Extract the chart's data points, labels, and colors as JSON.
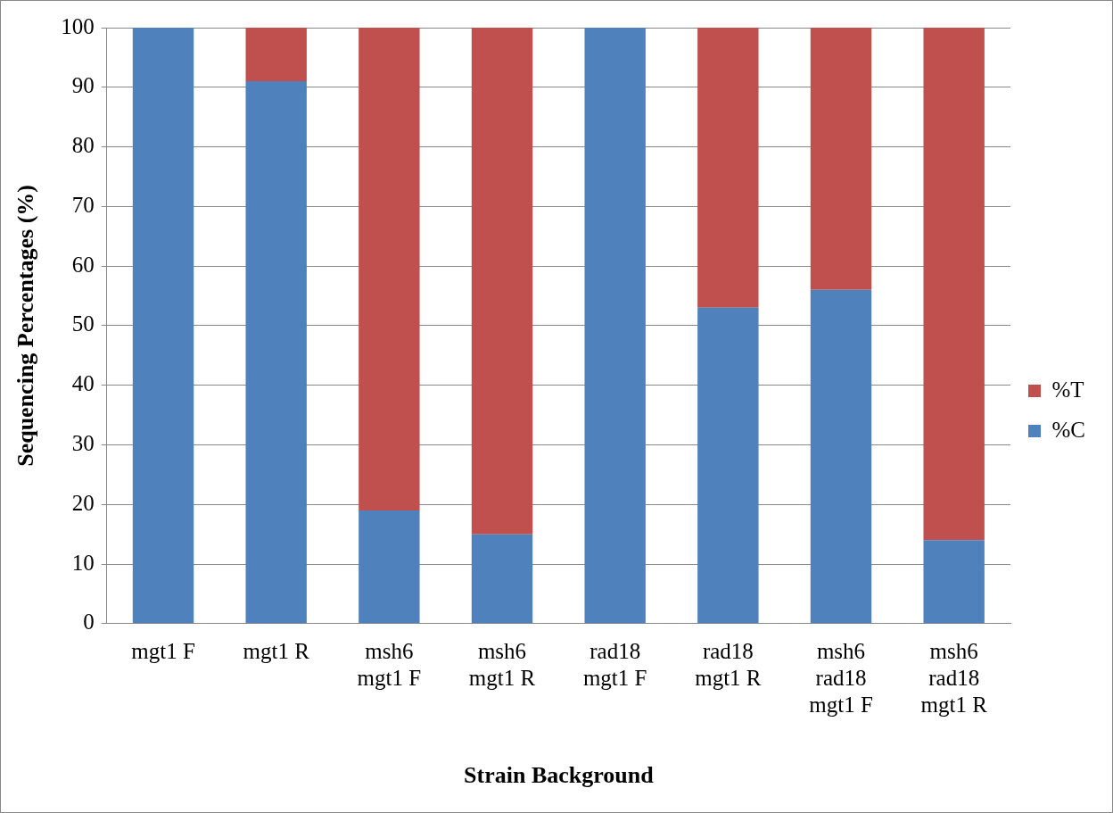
{
  "chart_data": {
    "type": "bar",
    "stacked": true,
    "xlabel": "Strain Background",
    "ylabel": "Sequencing Percentages (%)",
    "categories": [
      "mgt1 F",
      "mgt1 R",
      "msh6\nmgt1 F",
      "msh6\nmgt1 R",
      "rad18\nmgt1 F",
      "rad18\nmgt1 R",
      "msh6\nrad18\nmgt1 F",
      "msh6\nrad18\nmgt1 R"
    ],
    "series": [
      {
        "name": "%C",
        "color": "#4f81bd",
        "values": [
          100,
          91,
          19,
          15,
          100,
          53,
          56,
          14
        ]
      },
      {
        "name": "%T",
        "color": "#c0504d",
        "values": [
          0,
          9,
          81,
          85,
          0,
          47,
          44,
          86
        ]
      }
    ],
    "ylim": [
      0,
      100
    ],
    "yticks": [
      0,
      10,
      20,
      30,
      40,
      50,
      60,
      70,
      80,
      90,
      100
    ],
    "grid": "y",
    "legend": "right"
  }
}
